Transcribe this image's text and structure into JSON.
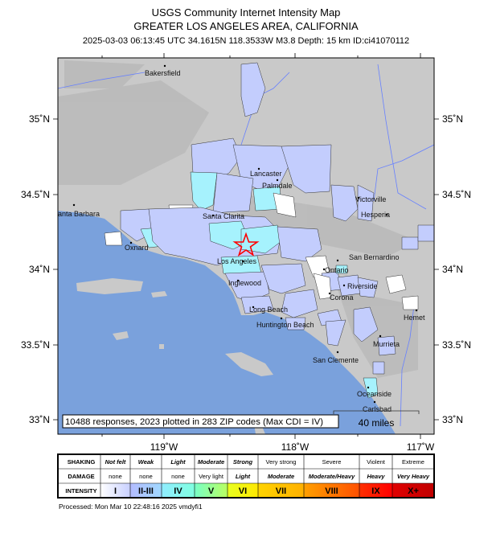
{
  "header": {
    "title": "USGS Community Internet Intensity Map",
    "region": "GREATER LOS ANGELES AREA, CALIFORNIA",
    "event_line": "2025-03-03 06:13:45 UTC 34.1615N 118.3533W M3.8 Depth: 15 km ID:ci41070112"
  },
  "map": {
    "lat_labels": [
      "35˚N",
      "34.5˚N",
      "34˚N",
      "33.5˚N",
      "33˚N"
    ],
    "lon_labels": [
      "119˚W",
      "118˚W",
      "117˚W"
    ],
    "cities": [
      "Bakersfield",
      "Lancaster",
      "Palmdale",
      "Victorville",
      "Hesperia",
      "Santa Barbara",
      "Santa Clarita",
      "Oxnard",
      "Los Angeles",
      "San Bernardino",
      "Ontario",
      "Riverside",
      "Inglewood",
      "Corona",
      "Long Beach",
      "Huntington Beach",
      "Hemet",
      "Murrieta",
      "San Clemente",
      "Oceanside",
      "Carlsbad"
    ],
    "summary": "10488 responses, 2023 plotted in 283 ZIP codes (Max CDI = IV)",
    "scale_label": "40 miles",
    "epicenter_icon": "red-star-icon",
    "colors": {
      "ocean": "#7aa1dc",
      "land": "#c9c9c9",
      "cdi_1": "#ffffff",
      "cdi_2_3": "#c3cdfd",
      "cdi_4": "#a6f2fd",
      "epicenter": "#ff0000"
    }
  },
  "legend": {
    "row_labels": [
      "SHAKING",
      "DAMAGE",
      "INTENSITY"
    ],
    "shaking": [
      "Not felt",
      "Weak",
      "Light",
      "Moderate",
      "Strong",
      "Very strong",
      "Severe",
      "Violent",
      "Extreme"
    ],
    "damage": [
      "none",
      "none",
      "none",
      "Very light",
      "Light",
      "Moderate",
      "Moderate/Heavy",
      "Heavy",
      "Very Heavy"
    ],
    "intensity": [
      "I",
      "II-III",
      "IV",
      "V",
      "VI",
      "VII",
      "VIII",
      "IX",
      "X+"
    ],
    "intensity_colors": [
      "#ffffff",
      "#acb8ff",
      "#80ffff",
      "#7aff93",
      "#ffff00",
      "#ffc800",
      "#ff9100",
      "#ff0000",
      "#c80000"
    ]
  },
  "footer": {
    "processed": "Processed: Mon Mar 10 22:48:16 2025 vmdyfi1"
  }
}
